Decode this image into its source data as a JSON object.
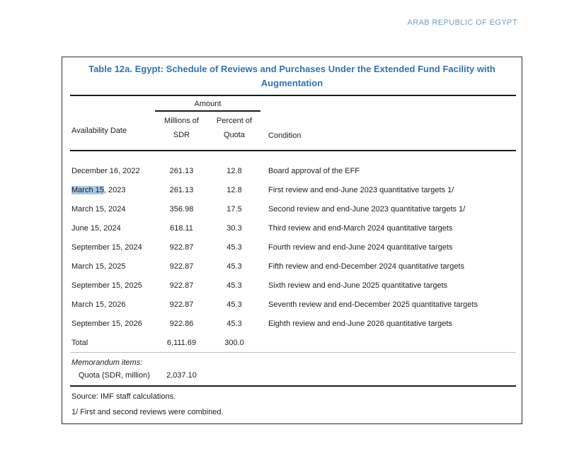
{
  "page": {
    "header_label": "ARAB REPUBLIC OF EGYPT"
  },
  "table": {
    "title": "Table 12a. Egypt: Schedule of Reviews and Purchases Under the Extended Fund Facility with Augmentation",
    "columns": {
      "availability_date": "Availability Date",
      "amount_group": "Amount",
      "millions_of_sdr": "Millions of SDR",
      "percent_of_quota": "Percent of Quota",
      "condition": "Condition"
    },
    "rows": [
      {
        "date": "December 16, 2022",
        "sdr": "261.13",
        "quota": "12.8",
        "condition": "Board approval of the EFF"
      },
      {
        "date_hl": "March 15",
        "date_rest": ", 2023",
        "sdr": "261.13",
        "quota": "12.8",
        "condition": "First review and end-June 2023 quantitative targets 1/"
      },
      {
        "date": "March 15, 2024",
        "sdr": "356.98",
        "quota": "17.5",
        "condition": "Second review and end-June 2023 quantitative targets 1/"
      },
      {
        "date": "June 15, 2024",
        "sdr": "618.11",
        "quota": "30.3",
        "condition": "Third review and end-March 2024 quantitative targets"
      },
      {
        "date": "September 15, 2024",
        "sdr": "922.87",
        "quota": "45.3",
        "condition": "Fourth review and end-June 2024 quantitative targets"
      },
      {
        "date": "March 15, 2025",
        "sdr": "922.87",
        "quota": "45.3",
        "condition": "Fifth review and end-December 2024 quantitative targets"
      },
      {
        "date": "September 15, 2025",
        "sdr": "922.87",
        "quota": "45.3",
        "condition": "Sixth review and end-June 2025 quantitative targets"
      },
      {
        "date": "March 15, 2026",
        "sdr": "922.87",
        "quota": "45.3",
        "condition": "Seventh review and end-December 2025 quantitative targets"
      },
      {
        "date": "September 15, 2026",
        "sdr": "922.86",
        "quota": "45.3",
        "condition": "Eighth review and end-June 2026 quantitative targets"
      }
    ],
    "total": {
      "label": "Total",
      "sdr": "6,111.69",
      "quota": "300.0"
    },
    "memorandum": {
      "heading": "Memorandum items:",
      "label": "Quota (SDR, million)",
      "value": "2,037.10"
    },
    "notes": {
      "source": "Source: IMF staff calculations.",
      "footnote1": "1/ First and second reviews were combined."
    }
  },
  "colors": {
    "title_blue": "#2e74b5",
    "header_label_blue": "#6d9dc5",
    "selection_highlight": "#a8c9e6",
    "rule_dark": "#1a1a1a",
    "rule_light": "#c0c0c0"
  }
}
